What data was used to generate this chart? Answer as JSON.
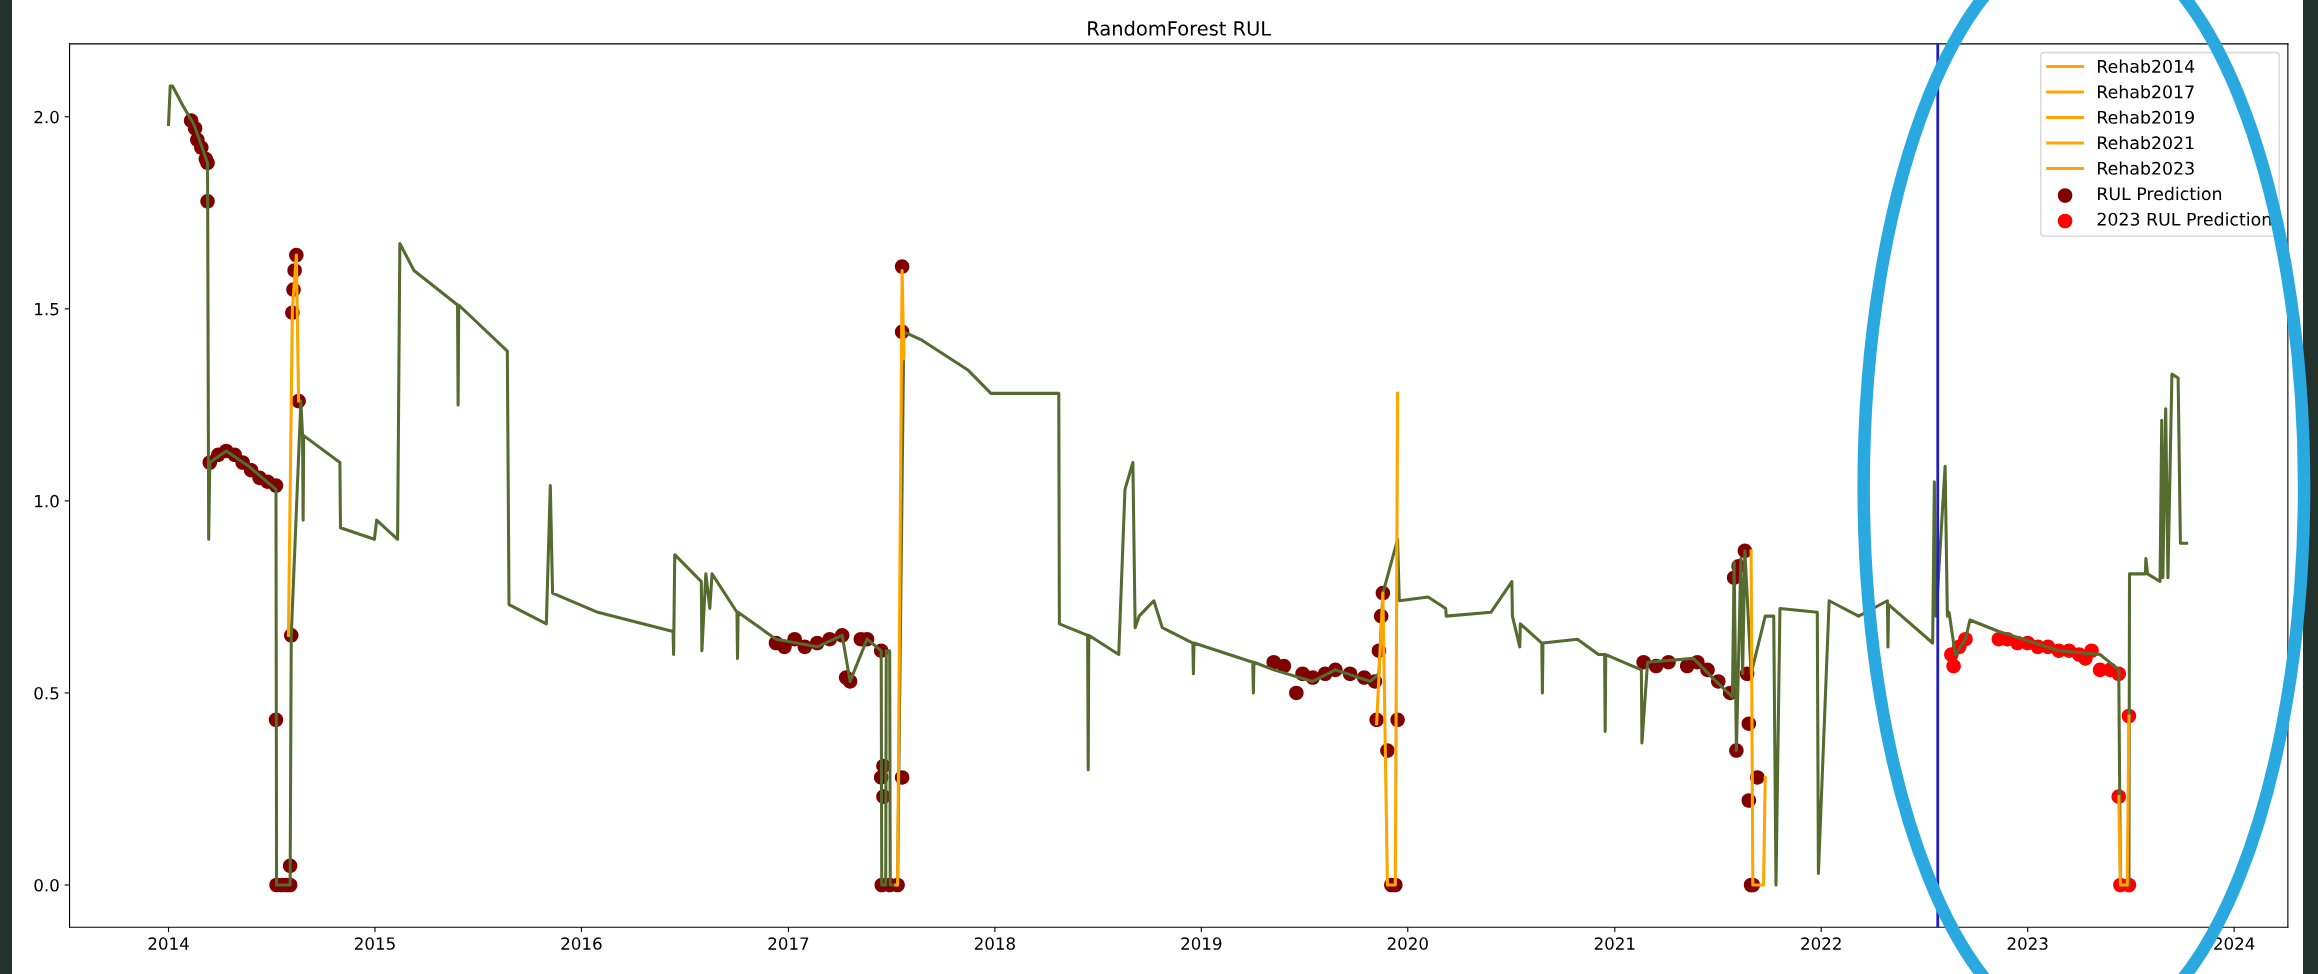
{
  "chart_data": {
    "type": "line",
    "title": "RandomForest RUL",
    "xlim": [
      "2013-07-10",
      "2024-04-05"
    ],
    "xticks": [
      {
        "value": "2014",
        "label": "2014"
      },
      {
        "value": "2015",
        "label": "2015"
      },
      {
        "value": "2016",
        "label": "2016"
      },
      {
        "value": "2017",
        "label": "2017"
      },
      {
        "value": "2018",
        "label": "2018"
      },
      {
        "value": "2019",
        "label": "2019"
      },
      {
        "value": "2020",
        "label": "2020"
      },
      {
        "value": "2021",
        "label": "2021"
      },
      {
        "value": "2022",
        "label": "2022"
      },
      {
        "value": "2023",
        "label": "2023"
      },
      {
        "value": "2024",
        "label": "2024"
      }
    ],
    "ylim": [
      -0.11,
      2.19
    ],
    "yticks": [
      {
        "value": 0,
        "label": "0.0"
      },
      {
        "value": 0.5,
        "label": "0.5"
      },
      {
        "value": 1,
        "label": "1.0"
      },
      {
        "value": 1.5,
        "label": "1.5"
      },
      {
        "value": 2,
        "label": "2.0"
      }
    ],
    "grid": false,
    "legend": "top right",
    "ref_lines": [
      {
        "axis": "x",
        "value": "2022-07-26",
        "color": "#2020c0"
      }
    ],
    "series": [
      {
        "color": "#556b2f",
        "x": [
          "2014-01-01",
          "2014-01-04",
          "2014-01-08",
          "2014-01-26",
          "2014-02-15",
          "2014-03-11",
          "2014-03-13",
          "2014-03-15",
          "2014-04-13",
          "2014-05-23",
          "2014-07-10",
          "2014-07-11",
          "2014-08-04",
          "2014-08-06",
          "2014-08-23",
          "2014-08-26",
          "2014-08-27",
          "2014-08-28",
          "2014-10-31",
          "2014-11-01",
          "2014-12-31",
          "2015-01-04",
          "2015-02-10",
          "2015-02-14",
          "2015-03-11",
          "2015-05-27",
          "2015-05-28",
          "2015-05-29",
          "2015-08-23",
          "2015-08-26",
          "2015-10-31",
          "2015-11-07",
          "2015-11-11",
          "2016-01-30",
          "2016-06-11",
          "2016-06-12",
          "2016-06-14",
          "2016-07-31",
          "2016-08-01",
          "2016-08-08",
          "2016-08-15",
          "2016-08-19",
          "2016-10-02",
          "2016-10-03",
          "2016-10-04",
          "2016-12-10",
          "2017-02-21",
          "2017-04-06",
          "2017-04-20",
          "2017-05-20",
          "2017-06-14",
          "2017-06-15",
          "2017-06-22",
          "2017-06-23",
          "2017-06-29",
          "2017-06-30",
          "2017-07-13",
          "2017-07-24",
          "2017-08-23",
          "2017-11-15",
          "2017-12-25",
          "2018-04-24",
          "2018-04-25",
          "2018-06-14",
          "2018-06-15",
          "2018-06-16",
          "2018-08-08",
          "2018-08-19",
          "2018-09-02",
          "2018-09-06",
          "2018-09-13",
          "2018-10-09",
          "2018-10-24",
          "2018-12-17",
          "2018-12-18",
          "2018-12-19",
          "2019-04-02",
          "2019-04-03",
          "2019-04-04",
          "2019-05-09",
          "2019-07-17",
          "2019-08-26",
          "2019-10-27",
          "2019-11-11",
          "2019-11-18",
          "2019-12-14",
          "2019-12-17",
          "2020-02-06",
          "2020-03-08",
          "2020-03-09",
          "2020-05-27",
          "2020-07-03",
          "2020-07-04",
          "2020-07-17",
          "2020-07-18",
          "2020-08-25",
          "2020-08-26",
          "2020-08-27",
          "2020-10-27",
          "2020-12-03",
          "2020-12-14",
          "2020-12-15",
          "2020-12-16",
          "2021-02-17",
          "2021-02-18",
          "2021-02-28",
          "2021-05-20",
          "2021-06-29",
          "2021-07-28",
          "2021-07-31",
          "2021-08-04",
          "2021-08-12",
          "2021-08-15",
          "2021-08-19",
          "2021-08-30",
          "2021-09-24",
          "2021-10-09",
          "2021-10-13",
          "2021-10-20",
          "2021-12-25",
          "2021-12-27",
          "2022-01-15",
          "2022-03-08",
          "2022-04-28",
          "2022-04-29",
          "2022-04-30",
          "2022-07-17",
          "2022-07-20",
          "2022-07-23",
          "2022-08-08",
          "2022-08-12",
          "2022-08-15",
          "2022-08-26",
          "2022-09-13",
          "2022-09-21",
          "2022-11-11",
          "2023-02-25",
          "2023-05-09",
          "2023-06-11",
          "2023-06-14",
          "2023-06-29",
          "2023-06-30",
          "2023-07-28",
          "2023-07-29",
          "2023-08-01",
          "2023-08-23",
          "2023-08-26",
          "2023-08-28",
          "2023-09-02",
          "2023-09-06",
          "2023-09-13",
          "2023-09-24",
          "2023-09-28",
          "2023-10-09"
        ],
        "values": [
          1.98,
          2.08,
          2.08,
          2.03,
          1.98,
          1.88,
          0.9,
          1.1,
          1.13,
          1.09,
          1.03,
          0.0,
          0.0,
          0.65,
          1.26,
          1.17,
          0.95,
          1.17,
          1.1,
          0.93,
          0.9,
          0.95,
          0.9,
          1.67,
          1.6,
          1.51,
          1.25,
          1.51,
          1.39,
          0.73,
          0.68,
          1.04,
          0.76,
          0.71,
          0.66,
          0.6,
          0.86,
          0.79,
          0.61,
          0.81,
          0.72,
          0.81,
          0.71,
          0.59,
          0.71,
          0.64,
          0.62,
          0.65,
          0.53,
          0.64,
          0.61,
          0.0,
          0.0,
          0.61,
          0.61,
          0.0,
          0.0,
          1.44,
          1.42,
          1.34,
          1.28,
          1.28,
          0.68,
          0.65,
          0.3,
          0.65,
          0.6,
          1.03,
          1.1,
          0.67,
          0.7,
          0.74,
          0.67,
          0.63,
          0.55,
          0.63,
          0.58,
          0.5,
          0.58,
          0.56,
          0.53,
          0.56,
          0.53,
          0.55,
          0.76,
          0.9,
          0.74,
          0.75,
          0.72,
          0.7,
          0.71,
          0.79,
          0.7,
          0.62,
          0.68,
          0.63,
          0.5,
          0.63,
          0.64,
          0.6,
          0.6,
          0.4,
          0.6,
          0.56,
          0.37,
          0.58,
          0.59,
          0.53,
          0.49,
          0.84,
          0.35,
          0.85,
          0.55,
          0.87,
          0.55,
          0.7,
          0.7,
          0.0,
          0.72,
          0.71,
          0.03,
          0.74,
          0.7,
          0.74,
          0.62,
          0.73,
          0.63,
          1.05,
          0.7,
          1.09,
          0.7,
          0.71,
          0.6,
          0.64,
          0.69,
          0.66,
          0.61,
          0.6,
          0.56,
          0.0,
          0.0,
          0.81,
          0.81,
          0.85,
          0.81,
          0.79,
          1.21,
          0.8,
          1.24,
          0.8,
          1.33,
          1.32,
          0.89,
          0.89
        ]
      },
      {
        "type": "line",
        "name": "Rehab2014",
        "color": "#ffa500",
        "x": [
          "2014-08-01",
          "2014-08-08",
          "2014-08-15",
          "2014-08-19"
        ],
        "values": [
          0.65,
          1.5,
          1.64,
          1.26
        ]
      },
      {
        "type": "line",
        "name": "Rehab2017",
        "color": "#ffa500",
        "x": [
          "2017-07-10",
          "2017-07-13",
          "2017-07-21",
          "2017-07-24"
        ],
        "values": [
          0.0,
          0.0,
          1.6,
          1.37
        ]
      },
      {
        "type": "line",
        "name": "Rehab2019",
        "color": "#ffa500",
        "x": [
          "2019-11-07",
          "2019-11-18",
          "2019-11-26",
          "2019-12-10",
          "2019-12-14"
        ],
        "values": [
          0.42,
          0.76,
          0.0,
          0.0,
          1.28
        ]
      },
      {
        "type": "line",
        "name": "Rehab2021",
        "color": "#ffa500",
        "x": [
          "2021-08-30",
          "2021-09-02",
          "2021-09-21",
          "2021-09-24"
        ],
        "values": [
          0.87,
          0.0,
          0.0,
          0.28
        ]
      },
      {
        "type": "line",
        "name": "Rehab2023",
        "color": "#ffa500",
        "x": [
          "2023-06-11",
          "2023-06-14",
          "2023-06-26",
          "2023-06-29"
        ],
        "values": [
          0.23,
          0.0,
          0.0,
          0.44
        ]
      },
      {
        "type": "scatter",
        "name": "RUL Prediction",
        "color": "#800000",
        "marker": "circle",
        "x": [
          "2014-02-10",
          "2014-02-17",
          "2014-02-21",
          "2014-02-28",
          "2014-03-08",
          "2014-03-11",
          "2014-03-11",
          "2014-03-15",
          "2014-03-30",
          "2014-04-13",
          "2014-04-28",
          "2014-05-12",
          "2014-05-27",
          "2014-06-11",
          "2014-06-25",
          "2014-07-10",
          "2014-07-10",
          "2014-07-11",
          "2014-07-20",
          "2014-07-28",
          "2014-08-04",
          "2014-08-04",
          "2014-08-06",
          "2014-08-08",
          "2014-08-10",
          "2014-08-12",
          "2014-08-15",
          "2014-08-19",
          "2016-12-10",
          "2016-12-25",
          "2017-01-12",
          "2017-01-30",
          "2017-02-21",
          "2017-03-15",
          "2017-04-06",
          "2017-04-13",
          "2017-04-20",
          "2017-05-09",
          "2017-05-20",
          "2017-06-14",
          "2017-06-14",
          "2017-06-18",
          "2017-06-18",
          "2017-06-15",
          "2017-06-29",
          "2017-07-13",
          "2017-07-21",
          "2017-07-21",
          "2017-07-21",
          "2019-05-09",
          "2019-05-27",
          "2019-06-18",
          "2019-06-29",
          "2019-07-17",
          "2019-08-08",
          "2019-08-26",
          "2019-09-21",
          "2019-10-16",
          "2019-11-04",
          "2019-11-07",
          "2019-11-11",
          "2019-11-15",
          "2019-11-18",
          "2019-11-26",
          "2019-12-03",
          "2019-12-10",
          "2019-12-14",
          "2021-02-21",
          "2021-03-15",
          "2021-04-06",
          "2021-05-09",
          "2021-05-27",
          "2021-06-14",
          "2021-07-03",
          "2021-07-24",
          "2021-07-31",
          "2021-08-04",
          "2021-08-08",
          "2021-08-19",
          "2021-08-23",
          "2021-08-26",
          "2021-08-26",
          "2021-08-30",
          "2021-09-02",
          "2021-09-10"
        ],
        "values": [
          1.99,
          1.97,
          1.94,
          1.92,
          1.89,
          1.88,
          1.78,
          1.1,
          1.12,
          1.13,
          1.12,
          1.1,
          1.08,
          1.06,
          1.05,
          1.04,
          0.43,
          0.0,
          0.0,
          0.0,
          0.0,
          0.05,
          0.65,
          1.49,
          1.55,
          1.6,
          1.64,
          1.26,
          0.63,
          0.62,
          0.64,
          0.62,
          0.63,
          0.64,
          0.65,
          0.54,
          0.53,
          0.64,
          0.64,
          0.61,
          0.28,
          0.31,
          0.23,
          0.0,
          0.0,
          0.0,
          0.28,
          1.61,
          1.44,
          0.58,
          0.57,
          0.5,
          0.55,
          0.54,
          0.55,
          0.56,
          0.55,
          0.54,
          0.53,
          0.43,
          0.61,
          0.7,
          0.76,
          0.35,
          0.0,
          0.0,
          0.43,
          0.58,
          0.57,
          0.58,
          0.57,
          0.58,
          0.56,
          0.53,
          0.5,
          0.8,
          0.35,
          0.83,
          0.87,
          0.55,
          0.42,
          0.22,
          0.0,
          0.0,
          0.28
        ]
      },
      {
        "type": "scatter",
        "name": "2023 RUL Prediction",
        "color": "#ff0000",
        "marker": "circle",
        "x": [
          "2022-08-19",
          "2022-08-23",
          "2022-09-02",
          "2022-09-13",
          "2022-11-11",
          "2022-11-26",
          "2022-12-14",
          "2023-01-01",
          "2023-01-19",
          "2023-02-06",
          "2023-02-25",
          "2023-03-15",
          "2023-04-02",
          "2023-04-13",
          "2023-04-24",
          "2023-05-09",
          "2023-05-27",
          "2023-06-11",
          "2023-06-11",
          "2023-06-14",
          "2023-06-29",
          "2023-06-29"
        ],
        "values": [
          0.6,
          0.57,
          0.62,
          0.64,
          0.64,
          0.64,
          0.63,
          0.63,
          0.62,
          0.62,
          0.61,
          0.61,
          0.6,
          0.59,
          0.61,
          0.56,
          0.56,
          0.55,
          0.23,
          0.0,
          0.0,
          0.44
        ]
      }
    ]
  }
}
